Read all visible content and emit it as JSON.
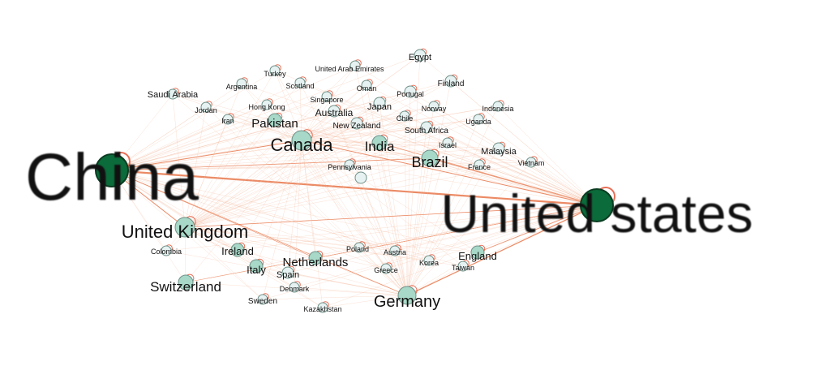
{
  "colors": {
    "edge": "#e8764a",
    "edge_light": "#f3b89c",
    "node_small_fill": "#e6f2f1",
    "node_mid_fill": "#a8d9c8",
    "node_big_fill": "#0b6b3a",
    "node_stroke": "#6f8f87",
    "self_loop": "#e24a2c"
  },
  "nodes": [
    {
      "id": "china",
      "label": "China",
      "tier": "xl"
    },
    {
      "id": "us",
      "label": "United states",
      "tier": "xl"
    },
    {
      "id": "canada",
      "label": "Canada",
      "tier": "l"
    },
    {
      "id": "uk",
      "label": "United Kingdom",
      "tier": "l"
    },
    {
      "id": "germany",
      "label": "Germany",
      "tier": "l"
    },
    {
      "id": "brazil",
      "label": "Brazil",
      "tier": "m"
    },
    {
      "id": "india",
      "label": "India",
      "tier": "m"
    },
    {
      "id": "switzerland",
      "label": "Switzerland",
      "tier": "m"
    },
    {
      "id": "netherlands",
      "label": "Netherlands",
      "tier": "m"
    },
    {
      "id": "pakistan",
      "label": "Pakistan",
      "tier": "m"
    },
    {
      "id": "england",
      "label": "England",
      "tier": "m"
    },
    {
      "id": "italy",
      "label": "Italy",
      "tier": "m"
    },
    {
      "id": "ireland",
      "label": "Ireland",
      "tier": "m"
    },
    {
      "id": "malaysia",
      "label": "Malaysia",
      "tier": "s"
    },
    {
      "id": "australia",
      "label": "Australia",
      "tier": "s"
    },
    {
      "id": "japan",
      "label": "Japan",
      "tier": "s"
    },
    {
      "id": "newzealand",
      "label": "New Zealand",
      "tier": "s"
    },
    {
      "id": "southafrica",
      "label": "South Africa",
      "tier": "s"
    },
    {
      "id": "egypt",
      "label": "Egypt",
      "tier": "s"
    },
    {
      "id": "finland",
      "label": "Finland",
      "tier": "s"
    },
    {
      "id": "uae",
      "label": "United Arab Emirates",
      "tier": "xs"
    },
    {
      "id": "turkey",
      "label": "Turkey",
      "tier": "xs"
    },
    {
      "id": "argentina",
      "label": "Argentina",
      "tier": "xs"
    },
    {
      "id": "scotland",
      "label": "Scotland",
      "tier": "xs"
    },
    {
      "id": "oman",
      "label": "Oman",
      "tier": "xs"
    },
    {
      "id": "portugal",
      "label": "Portugal",
      "tier": "xs"
    },
    {
      "id": "saudiarabia",
      "label": "Saudi Arabia",
      "tier": "s"
    },
    {
      "id": "jordan",
      "label": "Jordan",
      "tier": "xs"
    },
    {
      "id": "hongkong",
      "label": "Hong Kong",
      "tier": "xs"
    },
    {
      "id": "singapore",
      "label": "Singapore",
      "tier": "xs"
    },
    {
      "id": "norway",
      "label": "Norway",
      "tier": "xs"
    },
    {
      "id": "indonesia",
      "label": "Indonesia",
      "tier": "xs"
    },
    {
      "id": "iran",
      "label": "Iran",
      "tier": "xs"
    },
    {
      "id": "chile",
      "label": "Chile",
      "tier": "xs"
    },
    {
      "id": "uganda",
      "label": "Uganda",
      "tier": "xs"
    },
    {
      "id": "israel",
      "label": "Israel",
      "tier": "xs"
    },
    {
      "id": "france",
      "label": "France",
      "tier": "xs"
    },
    {
      "id": "vietnam",
      "label": "Vietnam",
      "tier": "xs"
    },
    {
      "id": "pennsylvania",
      "label": "Pennsylvania",
      "tier": "xs"
    },
    {
      "id": "colombia",
      "label": "Colombia",
      "tier": "xs"
    },
    {
      "id": "poland",
      "label": "Poland",
      "tier": "xs"
    },
    {
      "id": "austria",
      "label": "Austria",
      "tier": "xs"
    },
    {
      "id": "spain",
      "label": "Spain",
      "tier": "s"
    },
    {
      "id": "greece",
      "label": "Greece",
      "tier": "xs"
    },
    {
      "id": "korea",
      "label": "Korea",
      "tier": "xs"
    },
    {
      "id": "taiwan",
      "label": "Taiwan",
      "tier": "xs"
    },
    {
      "id": "denmark",
      "label": "Denmark",
      "tier": "xs"
    },
    {
      "id": "sweden",
      "label": "Sweden",
      "tier": "xs"
    },
    {
      "id": "kazakhstan",
      "label": "Kazakhstan",
      "tier": "xs"
    }
  ]
}
